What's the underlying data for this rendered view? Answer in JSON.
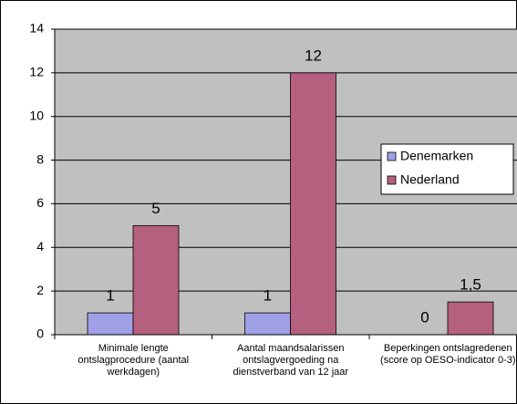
{
  "chart_data": {
    "type": "bar",
    "categories": [
      "Minimale lengte ontslagprocedure (aantal werkdagen)",
      "Aantal maandsalarissen ontslagvergoeding na dienstverband van 12 jaar",
      "Beperkingen ontslagredenen (score op OESO-indicator 0-3)"
    ],
    "series": [
      {
        "name": "Denemarken",
        "color": "#a0a0e6",
        "values": [
          1,
          1,
          0
        ]
      },
      {
        "name": "Nederland",
        "color": "#b4607e",
        "values": [
          5,
          12,
          1.5
        ],
        "value_labels": [
          "5",
          "12",
          "1,5"
        ]
      }
    ],
    "ylim": [
      0,
      14
    ],
    "yticks": [
      0,
      2,
      4,
      6,
      8,
      10,
      12,
      14
    ],
    "grid": true,
    "legend": "right"
  }
}
